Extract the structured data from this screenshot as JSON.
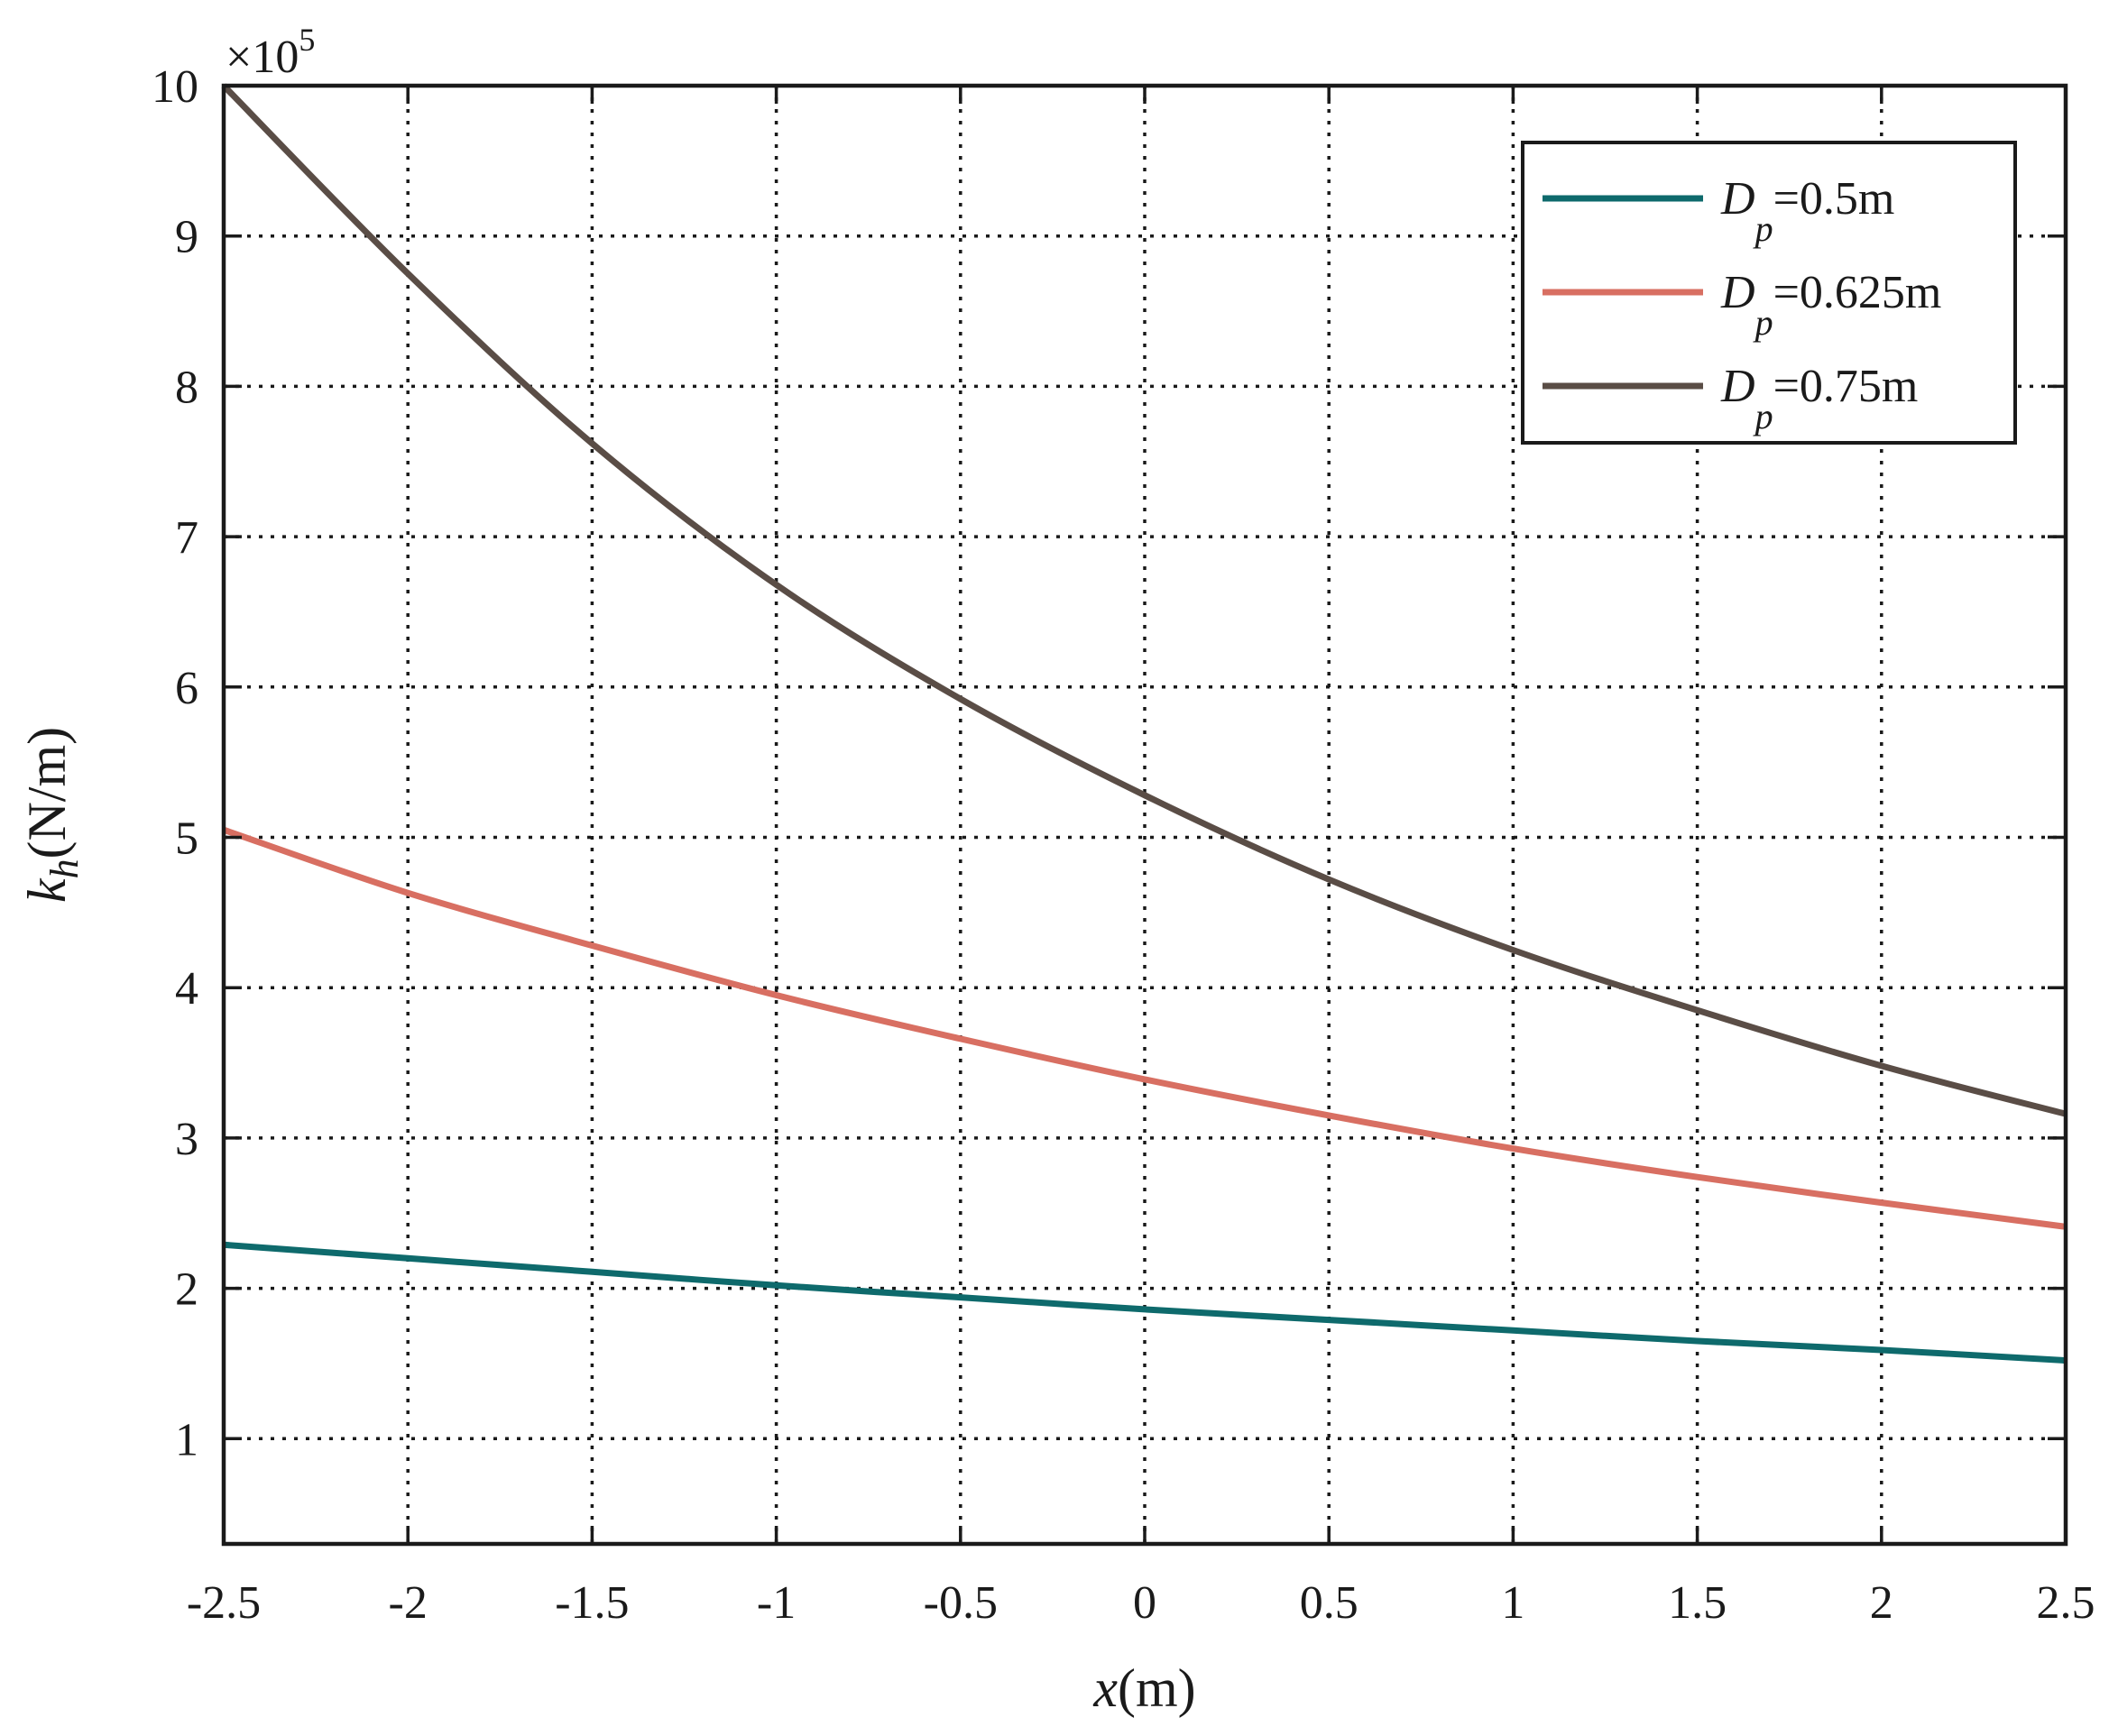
{
  "chart_data": {
    "type": "line",
    "xlabel": {
      "var": "x",
      "unit": "(m)"
    },
    "ylabel": {
      "var": "k",
      "sub": "h",
      "unit": "(N/m)"
    },
    "y_multiplier": {
      "prefix": "×10",
      "exponent": "5"
    },
    "xlim": [
      -2.5,
      2.5
    ],
    "ylim": [
      0.3,
      10
    ],
    "x_ticks": [
      -2.5,
      -2,
      -1.5,
      -1,
      -0.5,
      0,
      0.5,
      1,
      1.5,
      2,
      2.5
    ],
    "x_tick_labels": [
      "-2.5",
      "-2",
      "-1.5",
      "-1",
      "-0.5",
      "0",
      "0.5",
      "1",
      "1.5",
      "2",
      "2.5"
    ],
    "y_ticks": [
      1,
      2,
      3,
      4,
      5,
      6,
      7,
      8,
      9,
      10
    ],
    "y_tick_labels": [
      "1",
      "2",
      "3",
      "4",
      "5",
      "6",
      "7",
      "8",
      "9",
      "10"
    ],
    "grid": true,
    "legend_position": "top-right",
    "x": [
      -2.5,
      -2,
      -1.5,
      -1,
      -0.5,
      0,
      0.5,
      1,
      1.5,
      2,
      2.5
    ],
    "series": [
      {
        "label": {
          "var": "D",
          "sub": "p",
          "value": "=0.5m"
        },
        "color": "#0e6a6c",
        "values": [
          2.29,
          2.2,
          2.11,
          2.02,
          1.94,
          1.86,
          1.79,
          1.72,
          1.65,
          1.59,
          1.52
        ]
      },
      {
        "label": {
          "var": "D",
          "sub": "p",
          "value": "=0.625m"
        },
        "color": "#d86f62",
        "values": [
          5.05,
          4.63,
          4.28,
          3.95,
          3.66,
          3.39,
          3.15,
          2.93,
          2.74,
          2.57,
          2.41
        ]
      },
      {
        "label": {
          "var": "D",
          "sub": "p",
          "value": "=0.75m"
        },
        "color": "#5a4d46",
        "values": [
          10.0,
          8.75,
          7.62,
          6.68,
          5.92,
          5.28,
          4.72,
          4.25,
          3.85,
          3.48,
          3.16
        ]
      }
    ]
  }
}
